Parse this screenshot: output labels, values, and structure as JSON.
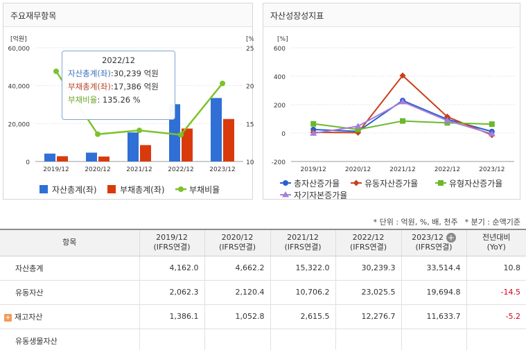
{
  "left_panel": {
    "title": "주요재무항목"
  },
  "right_panel": {
    "title": "자산성장성지표"
  },
  "tooltip": {
    "title": "2022/12",
    "asset_label": "자산총계(좌)",
    "asset_value": ":30,239 억원",
    "debt_label": "부채총계(좌)",
    "debt_value": ":17,386 억원",
    "ratio_label": "부채비율",
    "ratio_value": ":   135.26 %"
  },
  "colors": {
    "asset": "#2f6fd6",
    "debt": "#d83a0c",
    "ratio": "#7cc22b",
    "total_growth": "#2a5fd0",
    "current_growth": "#c8401a",
    "tangible_growth": "#6ab82c",
    "equity_growth": "#a77fd8"
  },
  "chart_data": [
    {
      "type": "bar",
      "categories": [
        "2019/12",
        "2020/12",
        "2021/12",
        "2022/12",
        "2023/12"
      ],
      "y_left": {
        "unit": "[억원]",
        "ylim": [
          0,
          60000
        ],
        "ticks": [
          "0",
          "20,000",
          "40,000",
          "60,000"
        ],
        "tick_values": [
          0,
          20000,
          40000,
          60000
        ]
      },
      "y_right": {
        "unit": "[%]",
        "ylim": [
          100,
          250
        ],
        "ticks": [
          "100",
          "150",
          "200",
          "250"
        ],
        "tick_values": [
          100,
          150,
          200,
          250
        ]
      },
      "series": [
        {
          "name": "자산총계(좌)",
          "kind": "bar",
          "values": [
            4162.0,
            4662.2,
            15322.0,
            30239.3,
            33514.4
          ]
        },
        {
          "name": "부채총계(좌)",
          "kind": "bar",
          "values": [
            2776,
            2617,
            8652,
            17386,
            22427
          ]
        },
        {
          "name": "부채비율",
          "kind": "line",
          "axis": "right",
          "values": [
            219,
            136,
            141,
            135.26,
            203
          ]
        }
      ],
      "legend": [
        "자산총계(좌)",
        "부채총계(좌)",
        "부채비율"
      ],
      "legend_position": "bottom",
      "grid": true
    },
    {
      "type": "line",
      "categories": [
        "2019/12",
        "2020/12",
        "2021/12",
        "2022/12",
        "2023/12"
      ],
      "y": {
        "unit": "[%]",
        "ylim": [
          -200,
          600
        ],
        "ticks": [
          "-200",
          "0",
          "200",
          "400",
          "600"
        ],
        "tick_values": [
          -200,
          0,
          200,
          400,
          600
        ]
      },
      "series": [
        {
          "name": "총자산증가율",
          "values": [
            25,
            12,
            229,
            97,
            11
          ]
        },
        {
          "name": "유동자산증가율",
          "values": [
            5,
            3,
            405,
            115,
            -14
          ]
        },
        {
          "name": "유형자산증가율",
          "values": [
            65,
            25,
            85,
            72,
            63
          ]
        },
        {
          "name": "자기자본증가율",
          "values": [
            -2,
            48,
            220,
            88,
            -5
          ]
        }
      ],
      "legend": [
        "총자산증가율",
        "유동자산증가율",
        "유형자산증가율",
        "자기자본증가율"
      ],
      "legend_position": "bottom",
      "grid": true
    }
  ],
  "note": {
    "unit": "* 단위 : 억원, %, 배, 천주",
    "period": "* 분기 : 순액기준"
  },
  "table": {
    "headers": [
      {
        "line1": "항목",
        "line2": ""
      },
      {
        "line1": "2019/12",
        "line2": "(IFRS연결)"
      },
      {
        "line1": "2020/12",
        "line2": "(IFRS연결)"
      },
      {
        "line1": "2021/12",
        "line2": "(IFRS연결)"
      },
      {
        "line1": "2022/12",
        "line2": "(IFRS연결)"
      },
      {
        "line1": "2023/12",
        "line2": "(IFRS연결)"
      },
      {
        "line1": "전년대비",
        "line2": "(YoY)"
      }
    ],
    "plus_icon": "+",
    "rows": [
      {
        "label": "자산총계",
        "expandable": false,
        "values": [
          "4,162.0",
          "4,662.2",
          "15,322.0",
          "30,239.3",
          "33,514.4",
          "10.8"
        ],
        "yoy_negative": false
      },
      {
        "label": "유동자산",
        "expandable": false,
        "values": [
          "2,062.3",
          "2,120.4",
          "10,706.2",
          "23,025.5",
          "19,694.8",
          "-14.5"
        ],
        "yoy_negative": true
      },
      {
        "label": "재고자산",
        "expandable": true,
        "values": [
          "1,386.1",
          "1,052.8",
          "2,615.5",
          "12,276.7",
          "11,633.7",
          "-5.2"
        ],
        "yoy_negative": true
      },
      {
        "label": "유동생물자산",
        "expandable": false,
        "values": [
          "",
          "",
          "",
          "",
          "",
          ""
        ],
        "yoy_negative": false
      }
    ]
  }
}
